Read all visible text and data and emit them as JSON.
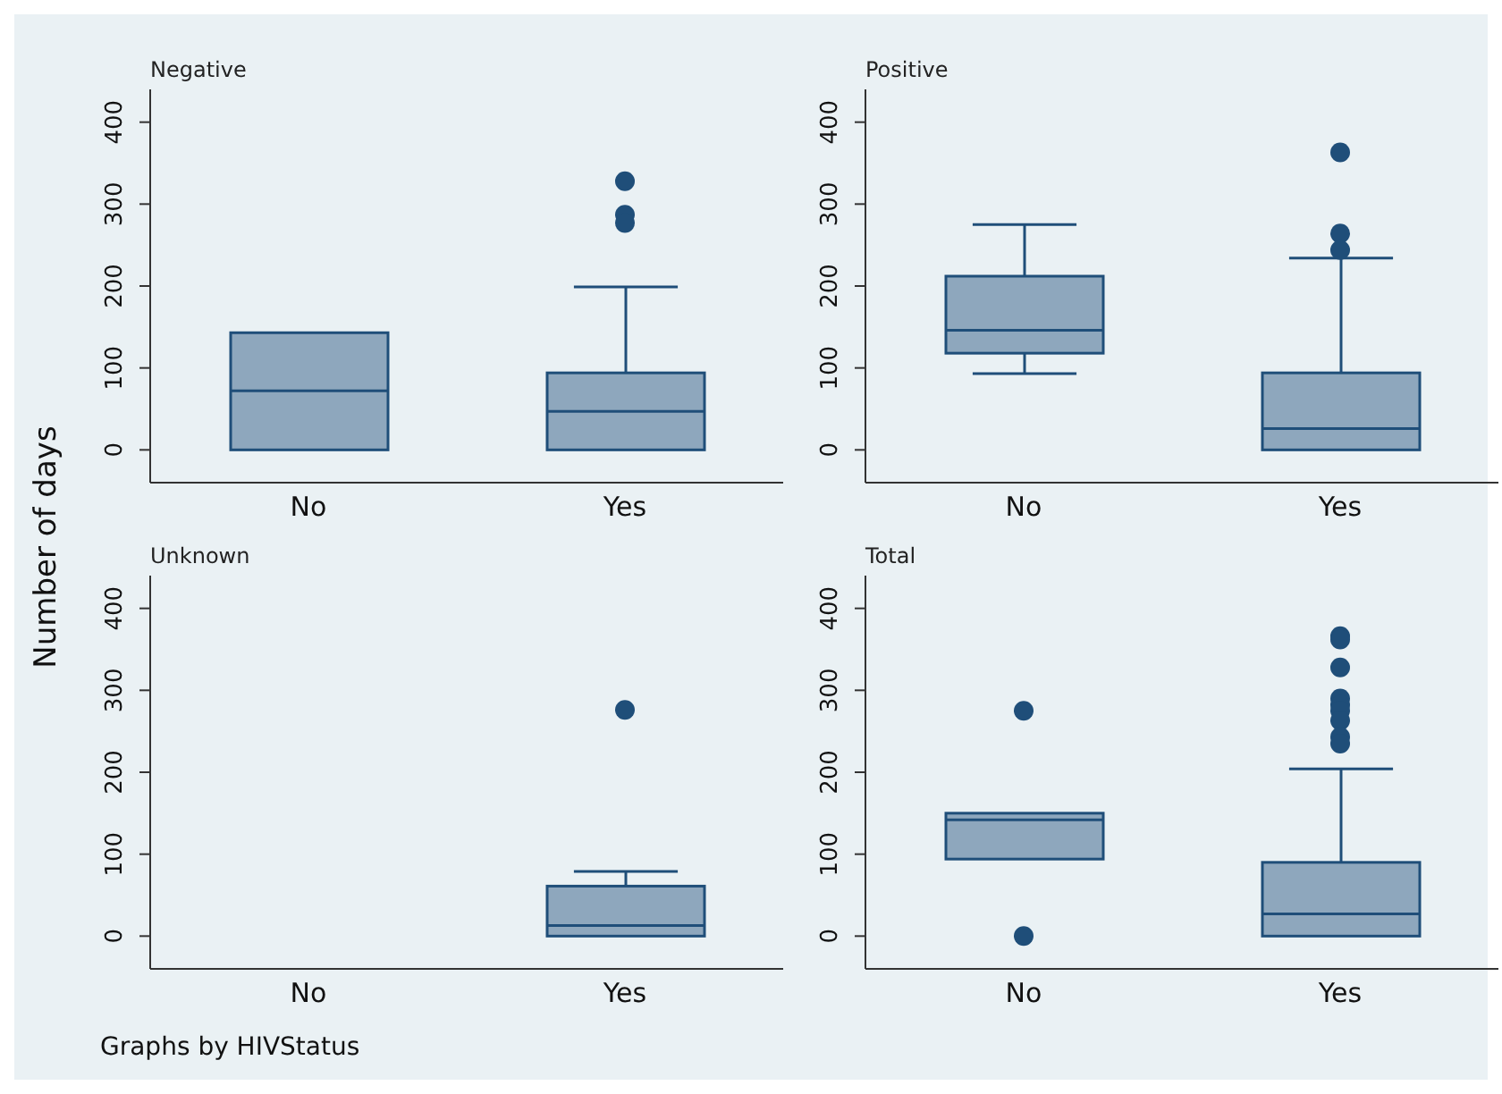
{
  "chart_data": [
    {
      "type": "box",
      "title": "Negative",
      "ylabel": "Number of days",
      "categories": [
        "No",
        "Yes"
      ],
      "ylim": [
        -40,
        440
      ],
      "yticks": [
        0,
        100,
        200,
        300,
        400
      ],
      "grid": false,
      "legend": false,
      "series": [
        {
          "color": "#1f4e79",
          "boxes": [
            {
              "low": 0,
              "q1": 0,
              "median": 72,
              "q3": 143,
              "high": 143
            },
            {
              "low": 0,
              "q1": 0,
              "median": 47,
              "q3": 94,
              "high": 199,
              "outliers": [
                328,
                287,
                277
              ]
            }
          ]
        }
      ]
    },
    {
      "type": "box",
      "title": "Positive",
      "categories": [
        "No",
        "Yes"
      ],
      "ylim": [
        -40,
        440
      ],
      "yticks": [
        0,
        100,
        200,
        300,
        400
      ],
      "grid": false,
      "legend": false,
      "series": [
        {
          "color": "#1f4e79",
          "boxes": [
            {
              "low": 93,
              "q1": 118,
              "median": 146,
              "q3": 212,
              "high": 275
            },
            {
              "low": 0,
              "q1": 0,
              "median": 26,
              "q3": 94,
              "high": 234,
              "outliers": [
                363,
                264,
                244
              ]
            }
          ]
        }
      ]
    },
    {
      "type": "box",
      "title": "Unknown",
      "categories": [
        "No",
        "Yes"
      ],
      "ylim": [
        -40,
        440
      ],
      "yticks": [
        0,
        100,
        200,
        300,
        400
      ],
      "grid": false,
      "legend": false,
      "annotations": [
        "Graphs by HIVStatus"
      ],
      "series": [
        {
          "color": "#1f4e79",
          "boxes": [
            null,
            {
              "low": 0,
              "q1": 0,
              "median": 13,
              "q3": 61,
              "high": 79,
              "outliers": [
                276
              ]
            }
          ]
        }
      ]
    },
    {
      "type": "box",
      "title": "Total",
      "categories": [
        "No",
        "Yes"
      ],
      "ylim": [
        -40,
        440
      ],
      "yticks": [
        0,
        100,
        200,
        300,
        400
      ],
      "grid": false,
      "legend": false,
      "series": [
        {
          "color": "#1f4e79",
          "boxes": [
            {
              "low": 94,
              "q1": 94,
              "median": 142,
              "q3": 150,
              "high": 150,
              "outliers": [
                275,
                0
              ]
            },
            {
              "low": 0,
              "q1": 0,
              "median": 27,
              "q3": 90,
              "high": 204,
              "outliers": [
                366,
                362,
                328,
                290,
                282,
                275,
                263,
                243,
                235
              ]
            }
          ]
        }
      ]
    }
  ]
}
